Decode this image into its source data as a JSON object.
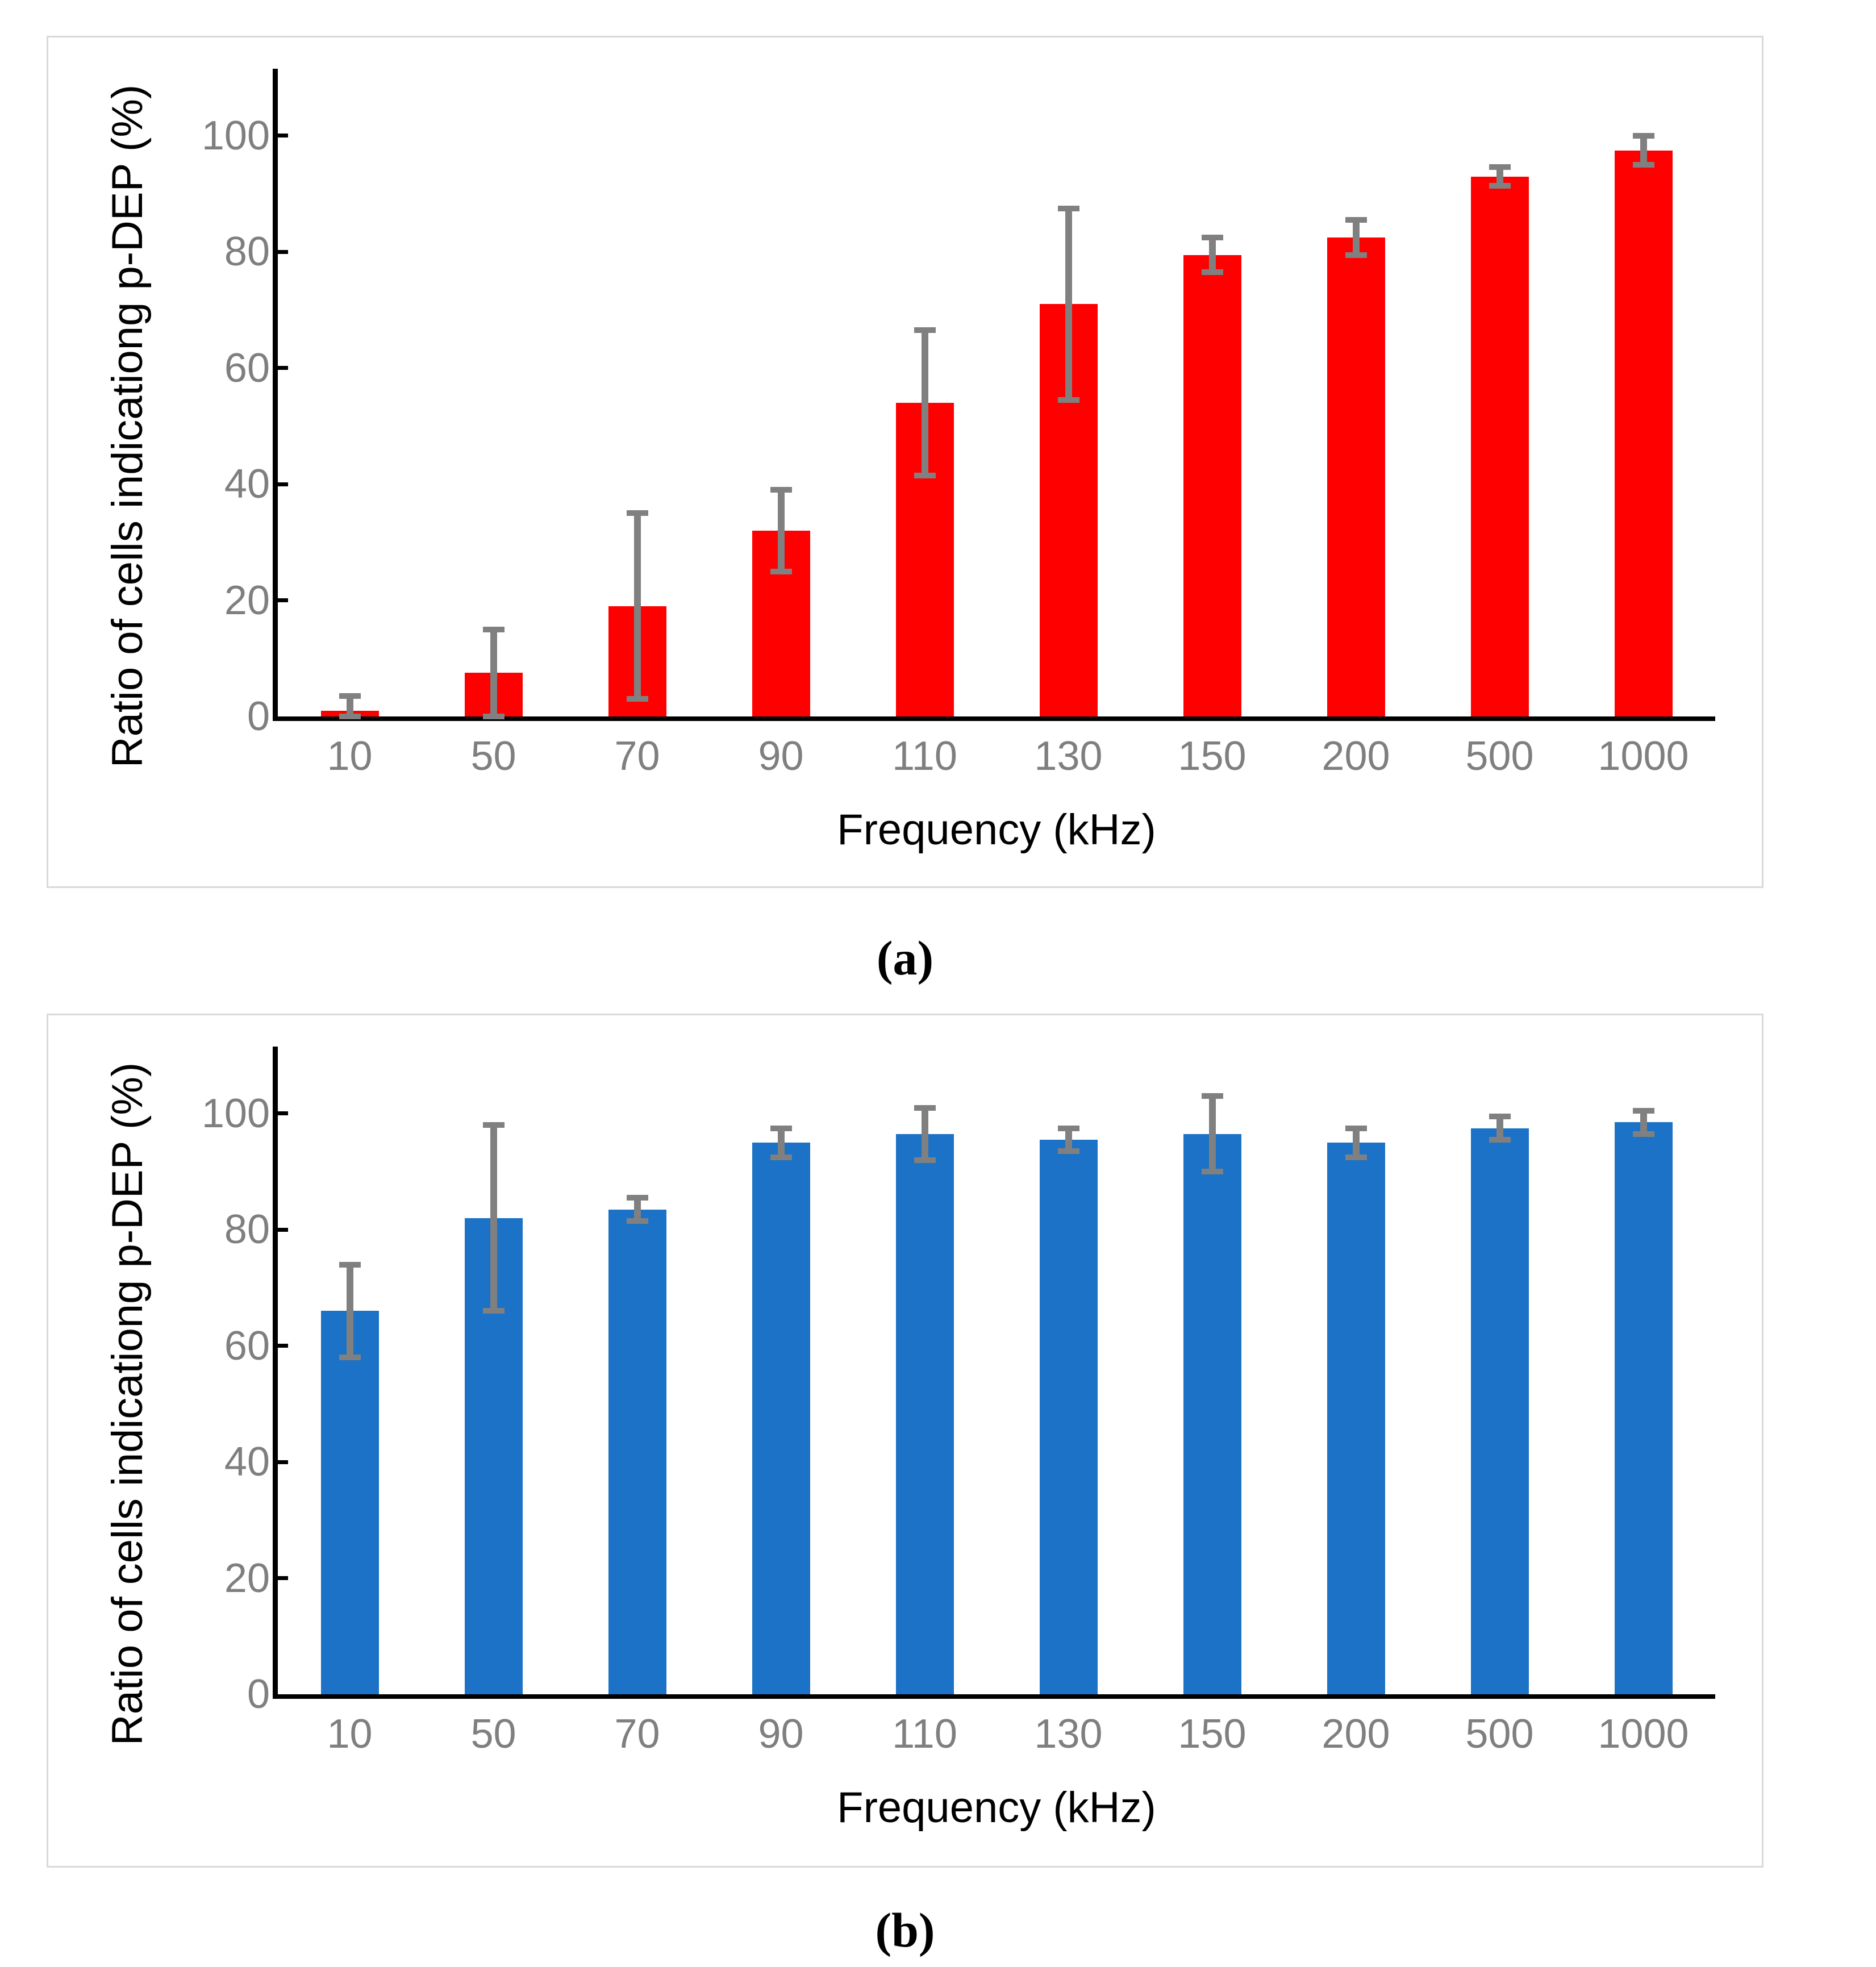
{
  "figure": {
    "captions": {
      "a": "(a)",
      "b": "(b)"
    }
  },
  "colors": {
    "bar_red": "#FF0000",
    "bar_blue": "#1B72C6",
    "error_bar": "#808080",
    "axis": "#000000",
    "tick_label": "#7F7F7F",
    "axis_title": "#000000",
    "panel_border": "#D9D9D9",
    "background": "#FFFFFF"
  },
  "chart_data": [
    {
      "panel_label": "(a)",
      "type": "bar",
      "bar_color": "#FF0000",
      "categories": [
        "10",
        "50",
        "70",
        "90",
        "110",
        "130",
        "150",
        "200",
        "500",
        "1000"
      ],
      "values": [
        1,
        7.5,
        19,
        32,
        54,
        71,
        79.5,
        82.5,
        93,
        97.5
      ],
      "error_bars": [
        2.5,
        7.5,
        16,
        7,
        12.5,
        16.5,
        3,
        3,
        1.6,
        2.5
      ],
      "xlabel": "Frequency (kHz)",
      "ylabel": "Ratio of cells indicationg p-DEP (%)",
      "y_ticks": [
        0,
        20,
        40,
        60,
        80,
        100
      ],
      "ylim": [
        0,
        112
      ],
      "grid": false,
      "legend": false
    },
    {
      "panel_label": "(b)",
      "type": "bar",
      "bar_color": "#1B72C6",
      "categories": [
        "10",
        "50",
        "70",
        "90",
        "110",
        "130",
        "150",
        "200",
        "500",
        "1000"
      ],
      "values": [
        66,
        82,
        83.5,
        95,
        96.5,
        95.5,
        96.5,
        95,
        97.5,
        98.5
      ],
      "error_bars": [
        8,
        16,
        2,
        2.5,
        4.5,
        2,
        6.5,
        2.5,
        2,
        2
      ],
      "xlabel": "Frequency (kHz)",
      "ylabel": "Ratio of cells indicationg p-DEP (%)",
      "y_ticks": [
        0,
        20,
        40,
        60,
        80,
        100
      ],
      "ylim": [
        0,
        112
      ],
      "grid": false,
      "legend": false
    }
  ]
}
